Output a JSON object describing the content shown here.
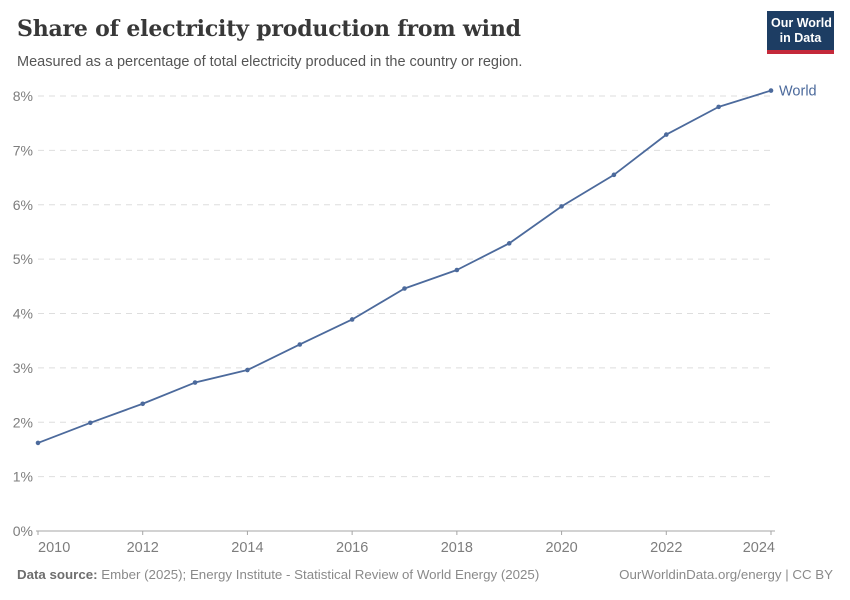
{
  "header": {
    "title": "Share of electricity production from wind",
    "subtitle": "Measured as a percentage of total electricity produced in the country or region.",
    "logo": {
      "line1": "Our World",
      "line2": "in Data"
    }
  },
  "chart_data": {
    "type": "line",
    "title": "Share of electricity production from wind",
    "xlabel": "",
    "ylabel": "",
    "x": [
      2010,
      2011,
      2012,
      2013,
      2014,
      2015,
      2016,
      2017,
      2018,
      2019,
      2020,
      2021,
      2022,
      2023,
      2024
    ],
    "series": [
      {
        "name": "World",
        "color": "#4c6a9c",
        "values": [
          1.62,
          1.99,
          2.34,
          2.73,
          2.96,
          3.43,
          3.89,
          4.46,
          4.8,
          5.29,
          5.97,
          6.55,
          7.29,
          7.8,
          8.1
        ]
      }
    ],
    "xlim": [
      2010,
      2024
    ],
    "ylim": [
      0,
      8
    ],
    "x_ticks": [
      2010,
      2012,
      2014,
      2016,
      2018,
      2020,
      2022,
      2024
    ],
    "y_ticks": [
      0,
      1,
      2,
      3,
      4,
      5,
      6,
      7,
      8
    ],
    "y_tick_suffix": "%",
    "grid": "horizontal-dashed",
    "legend_position": "end-of-line"
  },
  "footer": {
    "source_label": "Data source:",
    "source_text": " Ember (2025); Energy Institute - Statistical Review of World Energy (2025)",
    "right_text": "OurWorldinData.org/energy | CC BY"
  },
  "colors": {
    "line": "#4c6a9c",
    "gridline": "#dedede",
    "axis": "#a5a5a5",
    "tick_label": "#7d7d7d",
    "logo_bg": "#1d3d63",
    "logo_bar": "#c4293a"
  }
}
